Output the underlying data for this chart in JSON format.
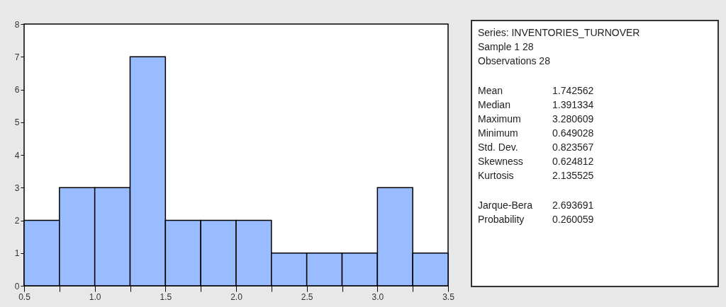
{
  "chart_data": {
    "type": "histogram",
    "bins": [
      0.5,
      0.75,
      1.0,
      1.25,
      1.5,
      1.75,
      2.0,
      2.25,
      2.5,
      2.75,
      3.0,
      3.25,
      3.5
    ],
    "values": [
      2,
      3,
      3,
      7,
      2,
      2,
      2,
      1,
      1,
      1,
      3,
      1
    ],
    "color": "#99bbff",
    "xlim": [
      0.5,
      3.5
    ],
    "xticks": [
      {
        "value": 0.5,
        "label": "0.5"
      },
      {
        "value": 0.75,
        "label": null
      },
      {
        "value": 1.0,
        "label": "1.0"
      },
      {
        "value": 1.25,
        "label": null
      },
      {
        "value": 1.5,
        "label": "1.5"
      },
      {
        "value": 1.75,
        "label": null
      },
      {
        "value": 2.0,
        "label": "2.0"
      },
      {
        "value": 2.25,
        "label": null
      },
      {
        "value": 2.5,
        "label": "2.5"
      },
      {
        "value": 2.75,
        "label": null
      },
      {
        "value": 3.0,
        "label": "3.0"
      },
      {
        "value": 3.25,
        "label": null
      },
      {
        "value": 3.5,
        "label": "3.5"
      }
    ],
    "ylim": [
      0,
      8
    ],
    "yticks": [
      0,
      1,
      2,
      3,
      4,
      5,
      6,
      7,
      8
    ],
    "grid": false,
    "annotations": [
      "Series: INVENTORIES_TURNOVER",
      "Sample 1 28",
      "Observations 28",
      "Mean\t1.742562",
      "Median\t1.391334",
      "Maximum\t3.280609",
      "Minimum\t0.649028",
      "Std. Dev.\t0.823567",
      "Skewness\t0.624812",
      "Kurtosis\t2.135525",
      "Jarque-Bera\t2.693691",
      "Probability\t0.260059"
    ]
  }
}
